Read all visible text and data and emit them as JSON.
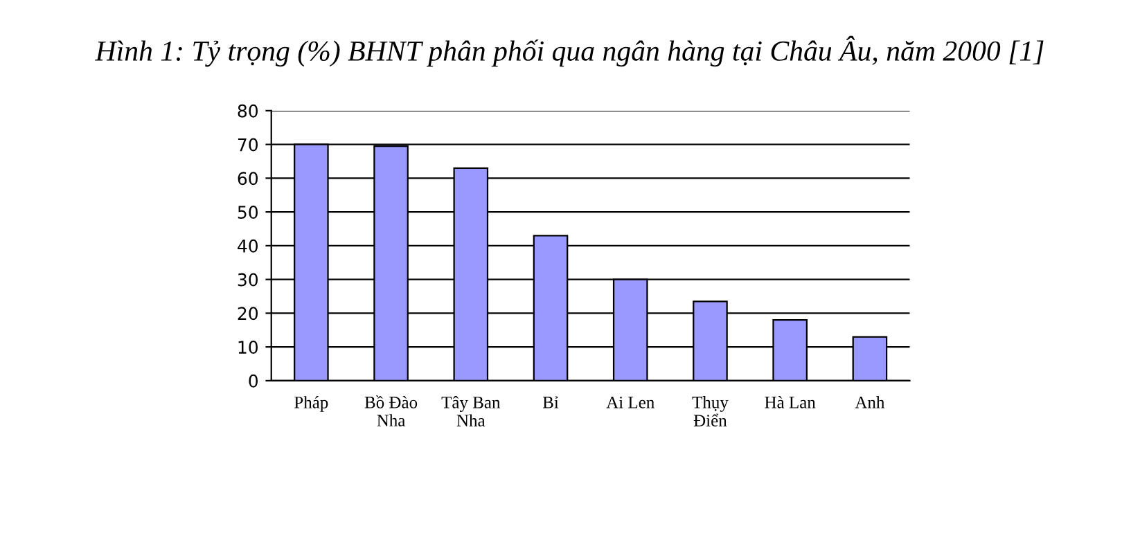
{
  "chart_data": {
    "type": "bar",
    "title": "Hình 1: Tỷ trọng (%) BHNT phân phối qua ngân hàng tại Châu Âu, năm 2000 [1]",
    "categories": [
      "Pháp",
      "Bồ Đào\nNha",
      "Tây Ban\nNha",
      "Bỉ",
      "Ai Len",
      "Thụy\nĐiển",
      "Hà Lan",
      "Anh"
    ],
    "values": [
      70,
      69.5,
      63,
      43,
      30,
      23.5,
      18,
      13
    ],
    "color": "#9999ff",
    "ylim": [
      0,
      80
    ],
    "yticks": [
      0,
      10,
      20,
      30,
      40,
      50,
      60,
      70,
      80
    ],
    "grid": "y"
  }
}
